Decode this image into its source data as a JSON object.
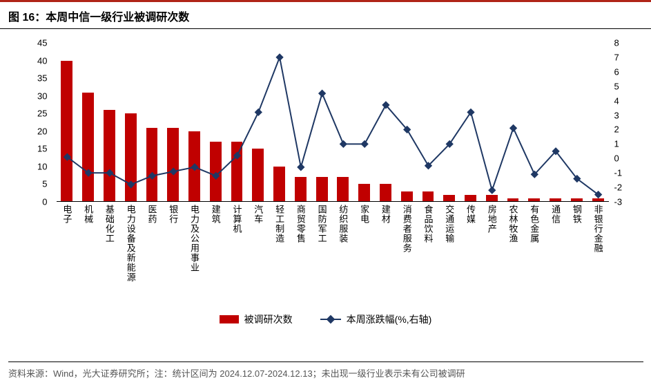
{
  "title": "图 16：本周中信一级行业被调研次数",
  "footer": "资料来源：Wind，光大证券研究所；注：统计区间为 2024.12.07-2024.12.13；未出现一级行业表示未有公司被调研",
  "chart": {
    "type": "bar+line",
    "background_color": "#ffffff",
    "axis_color": "#000000",
    "bar_color": "#c00000",
    "line_color": "#1f3864",
    "marker_color": "#1f3864",
    "bar_width_ratio": 0.55,
    "line_width": 2,
    "marker_style": "diamond",
    "marker_size": 8,
    "label_fontsize": 13,
    "left_axis": {
      "min": 0,
      "max": 45,
      "step": 5
    },
    "right_axis": {
      "min": -3,
      "max": 8,
      "step": 1
    },
    "categories": [
      "电子",
      "机械",
      "基础化工",
      "电力设备及新能源",
      "医药",
      "银行",
      "电力及公用事业",
      "建筑",
      "计算机",
      "汽车",
      "轻工制造",
      "商贸零售",
      "国防军工",
      "纺织服装",
      "家电",
      "建材",
      "消费者服务",
      "食品饮料",
      "交通运输",
      "传媒",
      "房地产",
      "农林牧渔",
      "有色金属",
      "通信",
      "钢铁",
      "非银行金融"
    ],
    "bar_values": [
      40,
      31,
      26,
      25,
      21,
      21,
      20,
      17,
      17,
      15,
      10,
      7,
      7,
      7,
      5,
      5,
      3,
      3,
      2,
      2,
      2,
      1,
      1,
      1,
      1,
      1
    ],
    "line_values": [
      0.1,
      -1.0,
      -1.0,
      -1.8,
      -1.2,
      -0.9,
      -0.6,
      -1.2,
      0.2,
      3.2,
      7.0,
      -0.6,
      4.5,
      1.0,
      1.0,
      3.7,
      2.0,
      -0.5,
      1.0,
      3.2,
      -2.2,
      2.1,
      -1.1,
      0.5,
      -1.4,
      -2.5
    ]
  },
  "legend": {
    "bar_label": "被调研次数",
    "line_label": "本周涨跌幅(%,右轴)"
  }
}
